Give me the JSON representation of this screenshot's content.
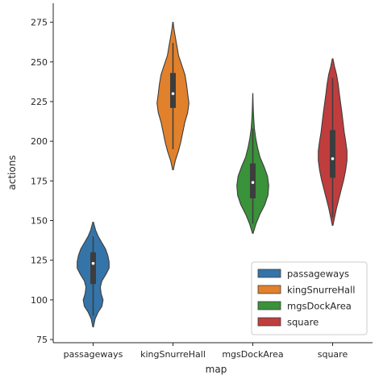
{
  "chart_data": {
    "type": "violin",
    "xlabel": "map",
    "ylabel": "actions",
    "categories": [
      "passageways",
      "kingSnurreHall",
      "mgsDockArea",
      "square"
    ],
    "ylim": [
      73,
      287
    ],
    "yticks": [
      75,
      100,
      125,
      150,
      175,
      200,
      225,
      250,
      275
    ],
    "grid": false,
    "legend": {
      "position": "lower-right",
      "entries": [
        "passageways",
        "kingSnurreHall",
        "mgsDockArea",
        "square"
      ]
    },
    "series": [
      {
        "name": "passageways",
        "color": "#3574a8",
        "median": 123,
        "q1": 110,
        "q3": 130,
        "whisker_low": 90,
        "whisker_high": 140,
        "profile": [
          [
            83,
            0.02
          ],
          [
            88,
            0.12
          ],
          [
            92,
            0.3
          ],
          [
            96,
            0.55
          ],
          [
            100,
            0.62
          ],
          [
            104,
            0.5
          ],
          [
            108,
            0.45
          ],
          [
            112,
            0.55
          ],
          [
            116,
            0.8
          ],
          [
            120,
            1.0
          ],
          [
            124,
            1.0
          ],
          [
            128,
            0.92
          ],
          [
            132,
            0.78
          ],
          [
            136,
            0.55
          ],
          [
            140,
            0.32
          ],
          [
            144,
            0.15
          ],
          [
            149,
            0.02
          ]
        ]
      },
      {
        "name": "kingSnurreHall",
        "color": "#e1812c",
        "median": 230,
        "q1": 221,
        "q3": 243,
        "whisker_low": 195,
        "whisker_high": 262,
        "profile": [
          [
            182,
            0.02
          ],
          [
            188,
            0.15
          ],
          [
            194,
            0.35
          ],
          [
            200,
            0.5
          ],
          [
            206,
            0.62
          ],
          [
            212,
            0.75
          ],
          [
            218,
            0.92
          ],
          [
            224,
            1.0
          ],
          [
            230,
            0.92
          ],
          [
            236,
            0.85
          ],
          [
            242,
            0.75
          ],
          [
            248,
            0.55
          ],
          [
            254,
            0.35
          ],
          [
            260,
            0.25
          ],
          [
            266,
            0.14
          ],
          [
            271,
            0.06
          ],
          [
            275,
            0.01
          ]
        ]
      },
      {
        "name": "mgsDockArea",
        "color": "#3a923a",
        "median": 174,
        "q1": 164,
        "q3": 186,
        "whisker_low": 148,
        "whisker_high": 208,
        "profile": [
          [
            142,
            0.02
          ],
          [
            148,
            0.2
          ],
          [
            154,
            0.45
          ],
          [
            160,
            0.75
          ],
          [
            166,
            0.95
          ],
          [
            172,
            1.0
          ],
          [
            178,
            0.92
          ],
          [
            184,
            0.7
          ],
          [
            190,
            0.45
          ],
          [
            196,
            0.3
          ],
          [
            202,
            0.18
          ],
          [
            208,
            0.1
          ],
          [
            214,
            0.06
          ],
          [
            220,
            0.03
          ],
          [
            225,
            0.015
          ],
          [
            230,
            0.005
          ]
        ]
      },
      {
        "name": "square",
        "color": "#c03d3e",
        "median": 189,
        "q1": 177,
        "q3": 207,
        "whisker_low": 152,
        "whisker_high": 240,
        "profile": [
          [
            147,
            0.02
          ],
          [
            152,
            0.12
          ],
          [
            158,
            0.25
          ],
          [
            164,
            0.4
          ],
          [
            170,
            0.55
          ],
          [
            176,
            0.7
          ],
          [
            182,
            0.82
          ],
          [
            188,
            0.9
          ],
          [
            194,
            0.9
          ],
          [
            200,
            0.82
          ],
          [
            206,
            0.72
          ],
          [
            212,
            0.65
          ],
          [
            218,
            0.58
          ],
          [
            224,
            0.5
          ],
          [
            230,
            0.42
          ],
          [
            236,
            0.35
          ],
          [
            242,
            0.25
          ],
          [
            247,
            0.12
          ],
          [
            252,
            0.02
          ]
        ]
      }
    ]
  }
}
